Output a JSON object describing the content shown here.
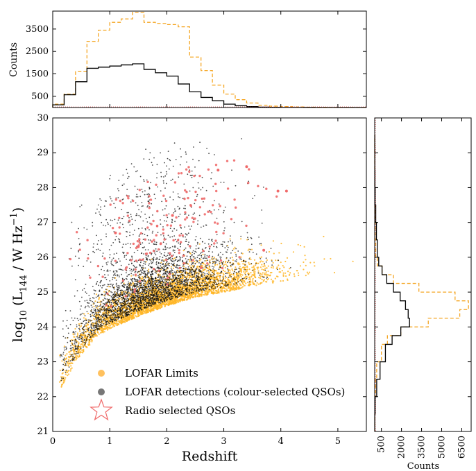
{
  "chart_data": [
    {
      "type": "scatter",
      "xlabel": "Redshift",
      "ylabel_base": "log",
      "ylabel_sub": "10",
      "ylabel_open": " (L",
      "ylabel_sub2": "144",
      "ylabel_unit": " / W Hz",
      "ylabel_sup": "−1",
      "ylabel_close": ")",
      "xlim": [
        0,
        5.5
      ],
      "ylim": [
        21,
        30
      ],
      "xticks": [
        0,
        1,
        2,
        3,
        4,
        5
      ],
      "yticks": [
        21,
        22,
        23,
        24,
        25,
        26,
        27,
        28,
        29,
        30
      ],
      "legend_position": "lower-left",
      "legend": [
        {
          "label": "LOFAR Limits",
          "color": "#ffb627",
          "marker": "dot"
        },
        {
          "label": "LOFAR detections (colour-selected QSOs)",
          "color": "#555555",
          "marker": "dot"
        },
        {
          "label": "Radio selected QSOs",
          "color": "#f06a6a",
          "marker": "star"
        }
      ],
      "series": [
        {
          "name": "LOFAR Limits",
          "color": "#ffb627",
          "envelope": "lower",
          "x": [
            0.2,
            0.4,
            0.6,
            0.8,
            1.0,
            1.5,
            2.0,
            2.5,
            3.0,
            3.5,
            4.0,
            4.5,
            5.0,
            5.4
          ],
          "y": [
            22.4,
            23.0,
            23.4,
            23.75,
            23.95,
            24.3,
            24.6,
            24.85,
            25.0,
            25.15,
            25.3,
            25.45,
            25.55,
            25.65
          ]
        },
        {
          "name": "LOFAR detections (colour-selected QSOs)",
          "color": "#555555",
          "density_peak": {
            "x": 1.6,
            "y": 24.8
          }
        },
        {
          "name": "Radio selected QSOs",
          "color": "#f06a6a",
          "sample_points": [
            [
              1.5,
              26.3
            ],
            [
              2.1,
              27.2
            ],
            [
              2.9,
              28.5
            ],
            [
              3.4,
              28.6
            ],
            [
              3.95,
              27.9
            ],
            [
              4.1,
              27.9
            ],
            [
              3.7,
              26.2
            ],
            [
              2.6,
              25.7
            ],
            [
              1.1,
              26.7
            ]
          ]
        }
      ]
    },
    {
      "type": "histogram",
      "orientation": "vertical",
      "ylabel": "Counts",
      "xlim": [
        0,
        5.5
      ],
      "ylim": [
        0,
        4300
      ],
      "yticks": [
        500,
        1500,
        2500,
        3500
      ],
      "bin_edges": [
        0,
        0.2,
        0.4,
        0.6,
        0.8,
        1.0,
        1.2,
        1.4,
        1.6,
        1.8,
        2.0,
        2.2,
        2.4,
        2.6,
        2.8,
        3.0,
        3.2,
        3.4,
        3.6,
        3.8,
        4.0,
        4.2,
        4.4,
        4.6,
        4.8,
        5.0,
        5.5
      ],
      "series": [
        {
          "name": "LOFAR Limits",
          "color": "#f5a623",
          "style": "dashed",
          "values": [
            150,
            600,
            1600,
            2950,
            3450,
            3800,
            3950,
            4250,
            3800,
            3750,
            3700,
            3600,
            2250,
            1650,
            1000,
            600,
            350,
            200,
            100,
            60,
            40,
            25,
            15,
            10,
            5,
            3
          ]
        },
        {
          "name": "LOFAR detections (colour-selected QSOs)",
          "color": "#000000",
          "style": "solid",
          "values": [
            120,
            570,
            1150,
            1750,
            1800,
            1850,
            1900,
            1950,
            1700,
            1550,
            1400,
            1050,
            700,
            450,
            300,
            150,
            80,
            40,
            20,
            10,
            5,
            3,
            2,
            1,
            0,
            0
          ]
        }
      ]
    },
    {
      "type": "histogram",
      "orientation": "horizontal",
      "xlabel": "Counts",
      "xlim": [
        0,
        7200
      ],
      "ylim": [
        21,
        30
      ],
      "xticks": [
        500,
        2000,
        3500,
        5000,
        6500
      ],
      "bin_edges": [
        21.0,
        21.5,
        22.0,
        22.5,
        23.0,
        23.5,
        23.75,
        24.0,
        24.25,
        24.5,
        24.75,
        25.0,
        25.25,
        25.5,
        25.75,
        26.0,
        26.5,
        27.0,
        27.5,
        28.0,
        28.5,
        29.0,
        29.5
      ],
      "series": [
        {
          "name": "LOFAR Limits",
          "color": "#f5a623",
          "style": "dashed",
          "values": [
            5,
            30,
            60,
            150,
            500,
            950,
            1950,
            4000,
            6350,
            7000,
            6000,
            3300,
            1400,
            550,
            200,
            80,
            40,
            20,
            10,
            5,
            2,
            1
          ]
        },
        {
          "name": "LOFAR detections (colour-selected QSOs)",
          "color": "#000000",
          "style": "solid",
          "values": [
            5,
            40,
            150,
            400,
            800,
            1300,
            1950,
            2600,
            2500,
            2300,
            1900,
            1400,
            900,
            550,
            300,
            200,
            130,
            80,
            40,
            20,
            10,
            5
          ]
        }
      ]
    }
  ]
}
